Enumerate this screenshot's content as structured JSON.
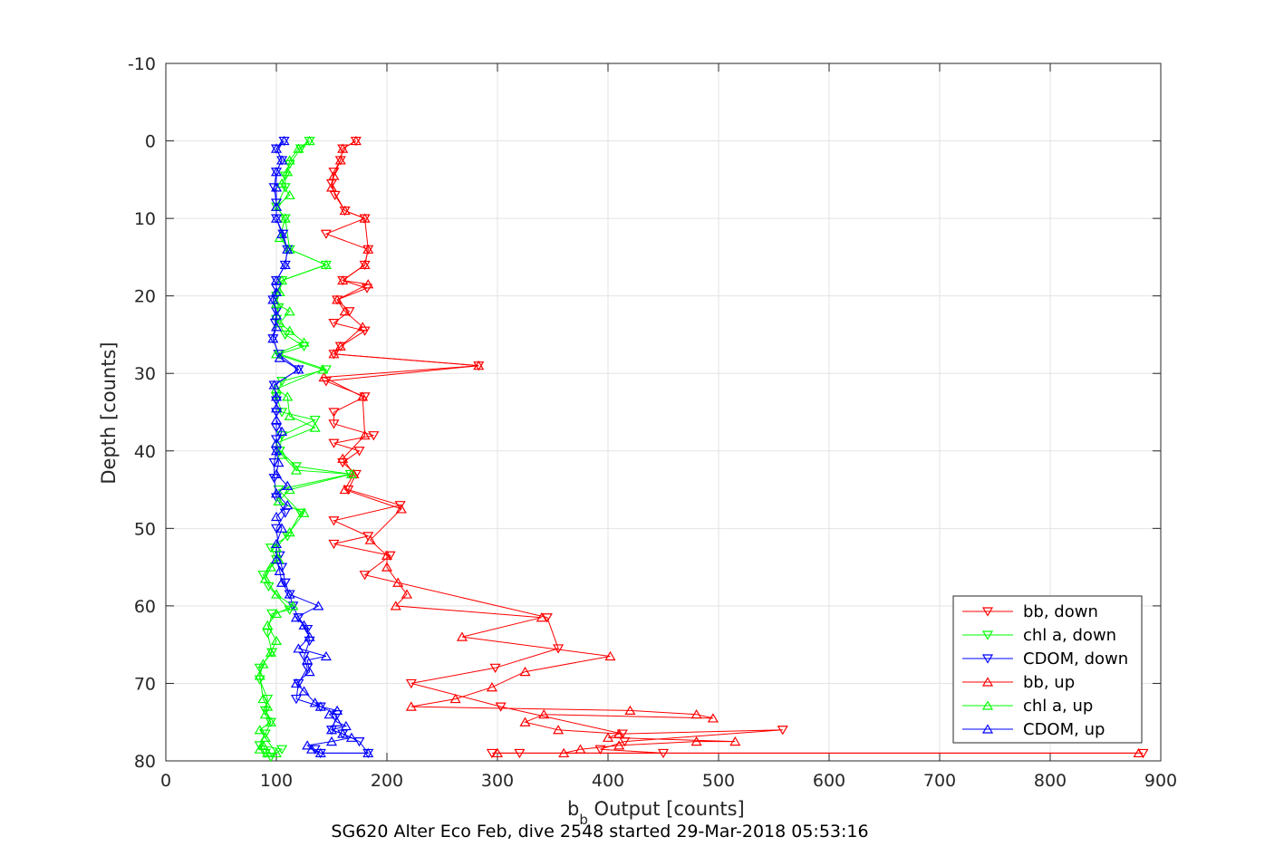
{
  "chart_data": {
    "type": "line",
    "xlabel_main": "b",
    "xlabel_sub": "b",
    "xlabel_rest": " Output [counts]",
    "ylabel": "Depth [counts]",
    "caption": "SG620 Alter Eco Feb, dive 2548 started 29-Mar-2018 05:53:16",
    "xlim": [
      0,
      900
    ],
    "ylim": [
      -10,
      80
    ],
    "y_reversed": true,
    "grid": true,
    "xticks": [
      0,
      100,
      200,
      300,
      400,
      500,
      600,
      700,
      800,
      900
    ],
    "yticks": [
      -10,
      0,
      10,
      20,
      30,
      40,
      50,
      60,
      70,
      80
    ],
    "legend_position": "bottom-right",
    "series": [
      {
        "name": "bb, down",
        "color": "#ff0000",
        "marker": "triangle-down",
        "points": [
          [
            172,
            0
          ],
          [
            160,
            1
          ],
          [
            158,
            2.5
          ],
          [
            152,
            4
          ],
          [
            150,
            5.5
          ],
          [
            153,
            7
          ],
          [
            162,
            9
          ],
          [
            180,
            10
          ],
          [
            145,
            12
          ],
          [
            183,
            14
          ],
          [
            180,
            16
          ],
          [
            160,
            18
          ],
          [
            182,
            19
          ],
          [
            155,
            20.5
          ],
          [
            166,
            22
          ],
          [
            152,
            23.5
          ],
          [
            180,
            24.5
          ],
          [
            158,
            26.5
          ],
          [
            152,
            27.5
          ],
          [
            283,
            29
          ],
          [
            145,
            31
          ],
          [
            180,
            33
          ],
          [
            152,
            35
          ],
          [
            152,
            36.5
          ],
          [
            188,
            38
          ],
          [
            152,
            39
          ],
          [
            175,
            40
          ],
          [
            160,
            41.5
          ],
          [
            172,
            43
          ],
          [
            165,
            45
          ],
          [
            212,
            47
          ],
          [
            152,
            49
          ],
          [
            183,
            51
          ],
          [
            152,
            52
          ],
          [
            203,
            53.5
          ],
          [
            180,
            56
          ],
          [
            345,
            61.5
          ],
          [
            355,
            65.5
          ],
          [
            298,
            68
          ],
          [
            222,
            70
          ],
          [
            303,
            73
          ],
          [
            413,
            76.5
          ],
          [
            558,
            76
          ],
          [
            415,
            77.5
          ],
          [
            393,
            78.5
          ],
          [
            450,
            79
          ],
          [
            320,
            79
          ],
          [
            884,
            79
          ],
          [
            295,
            79
          ]
        ]
      },
      {
        "name": "chl a, down",
        "color": "#00ff00",
        "marker": "triangle-down",
        "points": [
          [
            130,
            0
          ],
          [
            122,
            1
          ],
          [
            112,
            3
          ],
          [
            108,
            4.5
          ],
          [
            108,
            6
          ],
          [
            100,
            8.5
          ],
          [
            108,
            10
          ],
          [
            112,
            14
          ],
          [
            145,
            16
          ],
          [
            105,
            18
          ],
          [
            100,
            20
          ],
          [
            102,
            21.5
          ],
          [
            100,
            23
          ],
          [
            108,
            25
          ],
          [
            125,
            26.5
          ],
          [
            103,
            27.5
          ],
          [
            145,
            29.5
          ],
          [
            105,
            31
          ],
          [
            100,
            33
          ],
          [
            105,
            35
          ],
          [
            135,
            36
          ],
          [
            105,
            38
          ],
          [
            103,
            40
          ],
          [
            118,
            42
          ],
          [
            167,
            43
          ],
          [
            102,
            45
          ],
          [
            122,
            48
          ],
          [
            110,
            51
          ],
          [
            95,
            52.5
          ],
          [
            100,
            54
          ],
          [
            88,
            56
          ],
          [
            93,
            57.5
          ],
          [
            112,
            60.5
          ],
          [
            96,
            61
          ],
          [
            92,
            63.5
          ],
          [
            96,
            66
          ],
          [
            85,
            68
          ],
          [
            85,
            69.5
          ],
          [
            92,
            72
          ],
          [
            90,
            73.5
          ],
          [
            95,
            75
          ],
          [
            90,
            76.5
          ],
          [
            85,
            78
          ],
          [
            105,
            78.5
          ],
          [
            95,
            79.5
          ],
          [
            90,
            79
          ]
        ]
      },
      {
        "name": "CDOM, down",
        "color": "#0000ff",
        "marker": "triangle-down",
        "points": [
          [
            107,
            0
          ],
          [
            100,
            1
          ],
          [
            105,
            2.5
          ],
          [
            100,
            4
          ],
          [
            98,
            6
          ],
          [
            100,
            8
          ],
          [
            100,
            10
          ],
          [
            106,
            12
          ],
          [
            110,
            14
          ],
          [
            108,
            16
          ],
          [
            100,
            18
          ],
          [
            100,
            19
          ],
          [
            97,
            20.5
          ],
          [
            100,
            22
          ],
          [
            99,
            23.5
          ],
          [
            97,
            25.5
          ],
          [
            102,
            27.5
          ],
          [
            120,
            29.5
          ],
          [
            98,
            31.5
          ],
          [
            100,
            33.5
          ],
          [
            100,
            35
          ],
          [
            100,
            37
          ],
          [
            100,
            38.5
          ],
          [
            100,
            40
          ],
          [
            98,
            41.5
          ],
          [
            98,
            43.5
          ],
          [
            100,
            46
          ],
          [
            108,
            48
          ],
          [
            100,
            50
          ],
          [
            103,
            53.5
          ],
          [
            105,
            55
          ],
          [
            108,
            57
          ],
          [
            112,
            58.5
          ],
          [
            115,
            60
          ],
          [
            120,
            61.5
          ],
          [
            128,
            63
          ],
          [
            130,
            64.5
          ],
          [
            125,
            66.5
          ],
          [
            128,
            68
          ],
          [
            120,
            70
          ],
          [
            118,
            72
          ],
          [
            140,
            73
          ],
          [
            155,
            74
          ],
          [
            150,
            76
          ],
          [
            160,
            76.5
          ],
          [
            175,
            77.5
          ],
          [
            183,
            79
          ],
          [
            140,
            79
          ],
          [
            135,
            78.5
          ]
        ]
      },
      {
        "name": "bb, up",
        "color": "#ff0000",
        "marker": "triangle-up",
        "points": [
          [
            880,
            79
          ],
          [
            300,
            79
          ],
          [
            360,
            79
          ],
          [
            375,
            78.5
          ],
          [
            410,
            78
          ],
          [
            480,
            77.5
          ],
          [
            515,
            77.5
          ],
          [
            400,
            77
          ],
          [
            410,
            76.5
          ],
          [
            355,
            76
          ],
          [
            325,
            75
          ],
          [
            342,
            74
          ],
          [
            495,
            74.5
          ],
          [
            480,
            74
          ],
          [
            420,
            73.5
          ],
          [
            222,
            73
          ],
          [
            262,
            72
          ],
          [
            295,
            70.5
          ],
          [
            325,
            68.5
          ],
          [
            402,
            66.5
          ],
          [
            268,
            64
          ],
          [
            340,
            61.5
          ],
          [
            208,
            60
          ],
          [
            218,
            58.5
          ],
          [
            210,
            57
          ],
          [
            200,
            55
          ],
          [
            200,
            53.5
          ],
          [
            185,
            51.5
          ],
          [
            213,
            47.5
          ],
          [
            162,
            45
          ],
          [
            170,
            43
          ],
          [
            160,
            41
          ],
          [
            180,
            38
          ],
          [
            178,
            33
          ],
          [
            143,
            30.5
          ],
          [
            283,
            29
          ],
          [
            152,
            27.5
          ],
          [
            158,
            26.5
          ],
          [
            178,
            24
          ],
          [
            162,
            22
          ],
          [
            155,
            20.5
          ],
          [
            183,
            18.5
          ],
          [
            160,
            18
          ],
          [
            180,
            16
          ],
          [
            183,
            14
          ],
          [
            180,
            10
          ],
          [
            162,
            9
          ],
          [
            150,
            6
          ],
          [
            152,
            4.5
          ],
          [
            158,
            2.5
          ],
          [
            160,
            1
          ],
          [
            172,
            0
          ]
        ]
      },
      {
        "name": "chl a, up",
        "color": "#00ff00",
        "marker": "triangle-up",
        "points": [
          [
            85,
            78.5
          ],
          [
            88,
            78
          ],
          [
            92,
            79
          ],
          [
            100,
            79
          ],
          [
            90,
            77
          ],
          [
            85,
            76
          ],
          [
            95,
            75
          ],
          [
            90,
            74
          ],
          [
            92,
            73
          ],
          [
            88,
            72
          ],
          [
            85,
            69
          ],
          [
            88,
            67.5
          ],
          [
            95,
            66
          ],
          [
            100,
            64.5
          ],
          [
            92,
            62.5
          ],
          [
            100,
            61
          ],
          [
            115,
            60
          ],
          [
            100,
            58.5
          ],
          [
            90,
            56.5
          ],
          [
            95,
            55
          ],
          [
            102,
            54
          ],
          [
            100,
            52.5
          ],
          [
            112,
            50.5
          ],
          [
            125,
            48
          ],
          [
            102,
            46.5
          ],
          [
            112,
            45
          ],
          [
            168,
            43
          ],
          [
            118,
            42.5
          ],
          [
            105,
            40.5
          ],
          [
            100,
            39
          ],
          [
            135,
            37
          ],
          [
            112,
            35.5
          ],
          [
            110,
            33
          ],
          [
            100,
            32
          ],
          [
            142,
            29.5
          ],
          [
            100,
            27.5
          ],
          [
            125,
            26
          ],
          [
            112,
            24.5
          ],
          [
            103,
            23.5
          ],
          [
            112,
            22
          ],
          [
            100,
            21
          ],
          [
            103,
            19.5
          ],
          [
            105,
            18
          ],
          [
            145,
            16
          ],
          [
            112,
            14
          ],
          [
            103,
            12.5
          ],
          [
            108,
            10
          ],
          [
            100,
            8.5
          ],
          [
            112,
            7
          ],
          [
            105,
            5.5
          ],
          [
            110,
            4
          ],
          [
            112,
            2.5
          ],
          [
            120,
            1
          ],
          [
            130,
            0
          ]
        ]
      },
      {
        "name": "CDOM, up",
        "color": "#0000ff",
        "marker": "triangle-up",
        "points": [
          [
            183,
            79
          ],
          [
            140,
            79
          ],
          [
            132,
            78.5
          ],
          [
            128,
            78
          ],
          [
            150,
            77.5
          ],
          [
            168,
            77
          ],
          [
            160,
            76.5
          ],
          [
            150,
            76
          ],
          [
            163,
            75.5
          ],
          [
            155,
            75
          ],
          [
            148,
            74
          ],
          [
            155,
            73.5
          ],
          [
            140,
            73
          ],
          [
            135,
            72.5
          ],
          [
            125,
            71
          ],
          [
            118,
            70
          ],
          [
            130,
            68.5
          ],
          [
            128,
            67
          ],
          [
            145,
            66.5
          ],
          [
            120,
            65.5
          ],
          [
            130,
            64
          ],
          [
            125,
            62.5
          ],
          [
            118,
            61.5
          ],
          [
            138,
            60
          ],
          [
            112,
            58.5
          ],
          [
            105,
            57
          ],
          [
            103,
            55.5
          ],
          [
            100,
            54
          ],
          [
            100,
            52
          ],
          [
            105,
            50
          ],
          [
            100,
            48.5
          ],
          [
            110,
            47
          ],
          [
            100,
            45.5
          ],
          [
            110,
            44.5
          ],
          [
            100,
            43
          ],
          [
            102,
            41.5
          ],
          [
            100,
            40
          ],
          [
            100,
            39
          ],
          [
            105,
            37.5
          ],
          [
            100,
            36
          ],
          [
            100,
            34.5
          ],
          [
            100,
            33
          ],
          [
            98,
            31.5
          ],
          [
            120,
            29.5
          ],
          [
            103,
            28
          ],
          [
            97,
            25.5
          ],
          [
            100,
            24
          ],
          [
            100,
            22.5
          ],
          [
            97,
            20.5
          ],
          [
            100,
            19.5
          ],
          [
            100,
            18
          ],
          [
            108,
            16
          ],
          [
            110,
            14
          ],
          [
            105,
            12
          ],
          [
            100,
            10
          ],
          [
            100,
            8.5
          ],
          [
            100,
            6
          ],
          [
            100,
            4
          ],
          [
            105,
            2.5
          ],
          [
            100,
            1
          ],
          [
            107,
            0
          ]
        ]
      }
    ]
  }
}
